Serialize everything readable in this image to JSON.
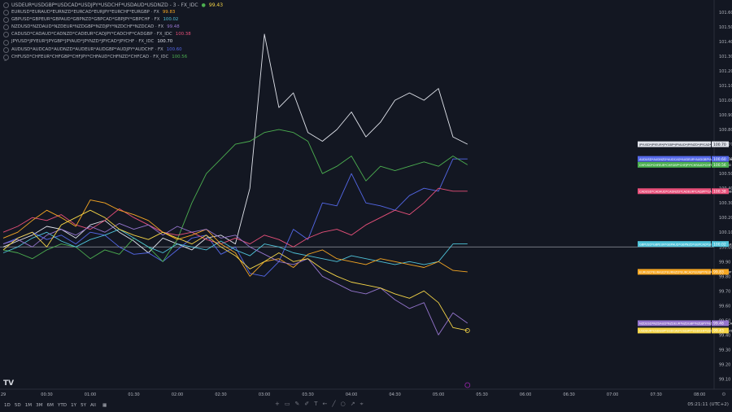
{
  "legend": {
    "main": {
      "name": "USDEUR*USDGBP*USDCAD*USDJPY*USDCHF*USDAUD*USDNZD - 3 - FX_IDC",
      "value": "99.43",
      "color": "#f5d547"
    },
    "rows": [
      {
        "name": "EURUSD*EURAUD*EURNZD*EURCAD*EURJPY*EURCHF*EURGBP · FX",
        "value": "99.83",
        "color": "#f5a623"
      },
      {
        "name": "GBPUSD*GBPEUR*GBPAUD*GBPNZD*GBPCAD*GBPJPY*GBPCHF · FX",
        "value": "100.02",
        "color": "#4fc3d9"
      },
      {
        "name": "NZDUSD*NZDAUD*NZDEUR*NZDGBP*NZDJPY*NZDCHF*NZDCAD · FX",
        "value": "99.48",
        "color": "#9575cd"
      },
      {
        "name": "CADUSD*CADAUD*CADNZD*CADEUR*CADJPY*CADCHF*CADGBP · FX_IDC",
        "value": "100.38",
        "color": "#e8507a"
      },
      {
        "name": "JPYUSD*JPYEUR*JPYGBP*JPYAUD*JPYNZD*JPYCAD*JPYCHF · FX_IDC",
        "value": "100.70",
        "color": "#e0e3eb"
      },
      {
        "name": "AUDUSD*AUDCAD*AUDNZD*AUDEUR*AUDGBP*AUDJPY*AUDCHF · FX",
        "value": "100.60",
        "color": "#5468e8"
      },
      {
        "name": "CHFUSD*CHFEUR*CHFGBP*CHFJPY*CHFAUD*CHFNZD*CHFCAD · FX_IDC",
        "value": "100.56",
        "color": "#4caf50"
      }
    ]
  },
  "chart_data": {
    "type": "line",
    "x": [
      "00:00",
      "00:10",
      "00:20",
      "00:30",
      "00:40",
      "00:50",
      "01:00",
      "01:10",
      "01:20",
      "01:30",
      "01:40",
      "01:50",
      "02:00",
      "02:10",
      "02:20",
      "02:30",
      "02:40",
      "02:50",
      "03:00",
      "03:10",
      "03:20",
      "03:30",
      "03:40",
      "03:50",
      "04:00",
      "04:10",
      "04:20",
      "04:30",
      "04:40",
      "04:50",
      "05:00",
      "05:10",
      "05:20"
    ],
    "xlim": [
      "00:00",
      "08:10"
    ],
    "ylim": [
      99.03,
      101.65
    ],
    "x_tick_labels": [
      {
        "label": "29",
        "at": "00:00"
      },
      {
        "label": "00:30",
        "at": "00:30"
      },
      {
        "label": "01:00",
        "at": "01:00"
      },
      {
        "label": "01:30",
        "at": "01:30"
      },
      {
        "label": "02:00",
        "at": "02:00"
      },
      {
        "label": "02:30",
        "at": "02:30"
      },
      {
        "label": "03:00",
        "at": "03:00"
      },
      {
        "label": "03:30",
        "at": "03:30"
      },
      {
        "label": "04:00",
        "at": "04:00"
      },
      {
        "label": "04:30",
        "at": "04:30"
      },
      {
        "label": "05:00",
        "at": "05:00"
      },
      {
        "label": "05:30",
        "at": "05:30"
      },
      {
        "label": "06:00",
        "at": "06:00"
      },
      {
        "label": "06:30",
        "at": "06:30"
      },
      {
        "label": "07:00",
        "at": "07:00"
      },
      {
        "label": "07:30",
        "at": "07:30"
      },
      {
        "label": "08:00",
        "at": "08:00"
      }
    ],
    "y_ticks": [
      101.6,
      101.5,
      101.4,
      101.3,
      101.2,
      101.1,
      101.0,
      100.9,
      100.8,
      100.7,
      100.6,
      100.5,
      100.4,
      100.3,
      100.2,
      100.1,
      100.0,
      99.9,
      99.8,
      99.7,
      99.6,
      99.5,
      99.4,
      99.3,
      99.2,
      99.1
    ],
    "baseline": 100.0,
    "series": [
      {
        "name": "JPY",
        "color": "#e0e3eb",
        "last_label": "JPYUSD*JPYEUR*JPYGBP*JPYAUD*JPYNZD*JPYCAD*JPYCHF - FX_IDC",
        "last_value": "100.70",
        "values": [
          100.0,
          100.04,
          100.08,
          100.14,
          100.12,
          100.06,
          100.15,
          100.18,
          100.1,
          100.04,
          99.96,
          100.06,
          100.02,
          99.98,
          100.06,
          100.08,
          100.02,
          100.4,
          101.45,
          100.95,
          101.05,
          100.78,
          100.72,
          100.8,
          100.92,
          100.75,
          100.85,
          101.0,
          101.05,
          101.0,
          101.08,
          100.75,
          100.7
        ]
      },
      {
        "name": "AUD",
        "color": "#5468e8",
        "last_label": "AUDUSD*AUDNZD*AUDCAD*AUDEUR*AUDGBP*AUDJPY*AUDCHF - FX",
        "last_value": "100.60",
        "values": [
          100.02,
          100.06,
          100.1,
          100.05,
          100.08,
          100.02,
          100.1,
          100.08,
          100.0,
          99.95,
          99.96,
          99.9,
          99.98,
          100.06,
          100.08,
          99.95,
          100.0,
          99.82,
          99.8,
          99.9,
          100.12,
          100.05,
          100.3,
          100.28,
          100.5,
          100.3,
          100.28,
          100.25,
          100.35,
          100.4,
          100.38,
          100.6,
          100.6
        ]
      },
      {
        "name": "CHF",
        "color": "#4caf50",
        "last_label": "CHFUSD*CHFEUR*CHFGBP*CHFJPY*CHFAUD*CHFNZD*CHFCAD - FX_IDC",
        "last_value": "100.56",
        "values": [
          99.98,
          99.96,
          99.92,
          99.98,
          100.02,
          100.0,
          99.92,
          99.98,
          99.95,
          100.06,
          100.0,
          99.9,
          100.05,
          100.3,
          100.5,
          100.6,
          100.7,
          100.72,
          100.78,
          100.8,
          100.78,
          100.72,
          100.5,
          100.55,
          100.62,
          100.45,
          100.55,
          100.52,
          100.55,
          100.58,
          100.55,
          100.62,
          100.56
        ]
      },
      {
        "name": "CAD",
        "color": "#e8507a",
        "last_label": "CADUSD*CADAUD*CADNZD*CADEUR*CADJPY*CADCHF*CADGBP - FX_IDC",
        "last_value": "100.38",
        "values": [
          100.1,
          100.14,
          100.2,
          100.18,
          100.22,
          100.15,
          100.12,
          100.18,
          100.26,
          100.2,
          100.15,
          100.1,
          100.08,
          100.1,
          100.05,
          100.02,
          100.06,
          100.02,
          100.08,
          100.05,
          100.0,
          100.06,
          100.1,
          100.12,
          100.08,
          100.15,
          100.2,
          100.25,
          100.22,
          100.3,
          100.4,
          100.38,
          100.38
        ]
      },
      {
        "name": "GBP",
        "color": "#4fc3d9",
        "last_label": "GBPUSD*GBPEUR*GBPAUD*GBPNZD*GBPCAD*GBPJPY*GBPCHF - FX",
        "last_value": "100.02",
        "values": [
          99.96,
          100.0,
          100.06,
          100.1,
          100.04,
          100.0,
          100.05,
          100.08,
          100.12,
          100.06,
          100.0,
          99.96,
          100.02,
          100.0,
          99.98,
          100.04,
          99.98,
          99.94,
          100.02,
          100.0,
          99.96,
          99.94,
          99.92,
          99.9,
          99.94,
          99.92,
          99.9,
          99.88,
          99.9,
          99.88,
          99.9,
          100.02,
          100.02
        ]
      },
      {
        "name": "EUR",
        "color": "#f5a623",
        "last_label": "EURUSD*EURAUD*EURNZD*EURCAD*EURJPY*EURCHF*EURGBP - FX",
        "last_value": "99.83",
        "values": [
          100.06,
          100.1,
          100.18,
          100.25,
          100.2,
          100.14,
          100.32,
          100.3,
          100.25,
          100.22,
          100.18,
          100.1,
          100.05,
          100.08,
          100.12,
          100.02,
          99.96,
          99.8,
          99.9,
          99.92,
          99.86,
          99.95,
          99.98,
          99.92,
          99.9,
          99.88,
          99.92,
          99.9,
          99.88,
          99.86,
          99.9,
          99.84,
          99.83
        ]
      },
      {
        "name": "NZD",
        "color": "#9575cd",
        "last_label": "NZDUSD*NZDAUD*NZDEUR*NZDGBP*NZDJPY*NZDCHF*NZDCAD - FX",
        "last_value": "99.48",
        "values": [
          100.02,
          100.05,
          100.0,
          100.08,
          100.12,
          100.08,
          100.14,
          100.1,
          100.16,
          100.12,
          100.15,
          100.08,
          100.14,
          100.1,
          100.12,
          100.06,
          100.08,
          100.0,
          99.95,
          99.9,
          99.88,
          99.92,
          99.8,
          99.75,
          99.7,
          99.68,
          99.72,
          99.64,
          99.58,
          99.62,
          99.4,
          99.55,
          99.48
        ]
      },
      {
        "name": "USD",
        "color": "#f5d547",
        "last_label": "USDEUR*USDGBP*USDCAD*USDJPY*USDCHF*USDAUD*USDNZD - 3 - FX_IDC",
        "last_value": "99.43",
        "values": [
          99.98,
          100.06,
          100.1,
          100.0,
          100.15,
          100.2,
          100.25,
          100.2,
          100.12,
          100.08,
          100.05,
          100.1,
          100.06,
          100.02,
          100.08,
          100.0,
          99.94,
          99.85,
          99.9,
          99.96,
          99.9,
          99.92,
          99.85,
          99.8,
          99.76,
          99.74,
          99.72,
          99.68,
          99.65,
          99.7,
          99.62,
          99.45,
          99.43
        ]
      }
    ]
  },
  "bottom": {
    "ranges": [
      "1D",
      "5D",
      "1M",
      "3M",
      "6M",
      "YTD",
      "1Y",
      "5Y",
      "All"
    ],
    "clock": "05:21:11 (UTC+2)"
  },
  "logo": "TV"
}
